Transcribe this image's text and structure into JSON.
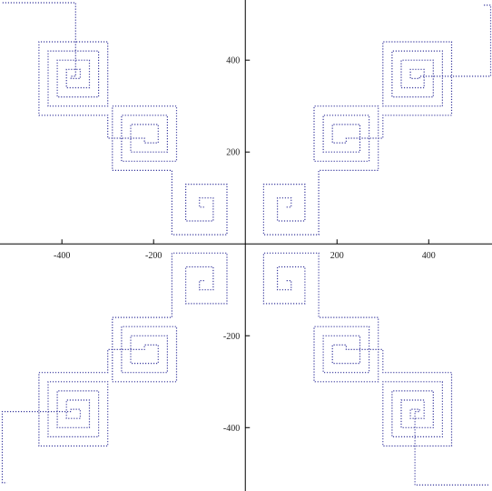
{
  "chart_data": {
    "type": "line",
    "xlim": [
      -535,
      538
    ],
    "ylim": [
      -538,
      531
    ],
    "xticks": [
      -400,
      -200,
      200,
      400
    ],
    "yticks": [
      -400,
      -200,
      200,
      400
    ],
    "series": [
      {
        "color": "#3b3b9e",
        "x": [
          90,
          100,
          100,
          70,
          70,
          130,
          130,
          40,
          40,
          160,
          160,
          290,
          290,
          150,
          150,
          270,
          270,
          170,
          170,
          250,
          250,
          190,
          190,
          220,
          220,
          300,
          300,
          450,
          450,
          300,
          300,
          430,
          430,
          320,
          320,
          410,
          410,
          340,
          340,
          390,
          390,
          360,
          360,
          380,
          380,
          535,
          535,
          520
        ],
        "values": [
          80,
          80,
          100,
          100,
          50,
          50,
          130,
          130,
          20,
          20,
          160,
          160,
          300,
          300,
          180,
          180,
          280,
          280,
          200,
          200,
          260,
          260,
          220,
          220,
          230,
          230,
          280,
          280,
          440,
          440,
          300,
          300,
          420,
          420,
          320,
          320,
          400,
          400,
          340,
          340,
          380,
          380,
          360,
          360,
          365,
          365,
          520,
          520
        ]
      },
      {
        "color": "#3b3b9e",
        "x": [
          -90,
          -100,
          -100,
          -70,
          -70,
          -130,
          -130,
          -40,
          -40,
          -160,
          -160,
          -290,
          -290,
          -150,
          -150,
          -270,
          -270,
          -170,
          -170,
          -250,
          -250,
          -190,
          -190,
          -220,
          -220,
          -300,
          -300,
          -450,
          -450,
          -300,
          -300,
          -430,
          -430,
          -320,
          -320,
          -410,
          -410,
          -340,
          -340,
          -390,
          -390,
          -360,
          -360,
          -380,
          -380,
          -370,
          -370,
          -530
        ],
        "values": [
          80,
          80,
          100,
          100,
          50,
          50,
          130,
          130,
          20,
          20,
          160,
          160,
          300,
          300,
          180,
          180,
          280,
          280,
          200,
          200,
          260,
          260,
          220,
          220,
          230,
          230,
          280,
          280,
          440,
          440,
          300,
          300,
          420,
          420,
          320,
          320,
          400,
          400,
          340,
          340,
          380,
          380,
          360,
          360,
          365,
          365,
          525,
          525
        ]
      },
      {
        "color": "#3b3b9e",
        "x": [
          -90,
          -100,
          -100,
          -70,
          -70,
          -130,
          -130,
          -40,
          -40,
          -160,
          -160,
          -290,
          -290,
          -150,
          -150,
          -270,
          -270,
          -170,
          -170,
          -250,
          -250,
          -190,
          -190,
          -220,
          -220,
          -300,
          -300,
          -450,
          -450,
          -300,
          -300,
          -430,
          -430,
          -320,
          -320,
          -410,
          -410,
          -340,
          -340,
          -390,
          -390,
          -360,
          -360,
          -380,
          -380,
          -530,
          -530,
          -520
        ],
        "values": [
          -80,
          -80,
          -100,
          -100,
          -50,
          -50,
          -130,
          -130,
          -20,
          -20,
          -160,
          -160,
          -300,
          -300,
          -180,
          -180,
          -280,
          -280,
          -200,
          -200,
          -260,
          -260,
          -220,
          -220,
          -230,
          -230,
          -280,
          -280,
          -440,
          -440,
          -300,
          -300,
          -420,
          -420,
          -320,
          -320,
          -400,
          -400,
          -340,
          -340,
          -380,
          -380,
          -360,
          -360,
          -365,
          -365,
          -520,
          -520
        ]
      },
      {
        "color": "#3b3b9e",
        "x": [
          90,
          100,
          100,
          70,
          70,
          130,
          130,
          40,
          40,
          160,
          160,
          290,
          290,
          150,
          150,
          270,
          270,
          170,
          170,
          250,
          250,
          190,
          190,
          220,
          220,
          300,
          300,
          450,
          450,
          300,
          300,
          430,
          430,
          320,
          320,
          410,
          410,
          340,
          340,
          390,
          390,
          360,
          360,
          380,
          380,
          370,
          370,
          530
        ],
        "values": [
          -80,
          -80,
          -100,
          -100,
          -50,
          -50,
          -130,
          -130,
          -20,
          -20,
          -160,
          -160,
          -300,
          -300,
          -180,
          -180,
          -280,
          -280,
          -200,
          -200,
          -260,
          -260,
          -220,
          -220,
          -230,
          -230,
          -280,
          -280,
          -440,
          -440,
          -300,
          -300,
          -420,
          -420,
          -320,
          -320,
          -400,
          -400,
          -340,
          -340,
          -380,
          -380,
          -360,
          -360,
          -365,
          -365,
          -525,
          -525
        ]
      }
    ]
  }
}
